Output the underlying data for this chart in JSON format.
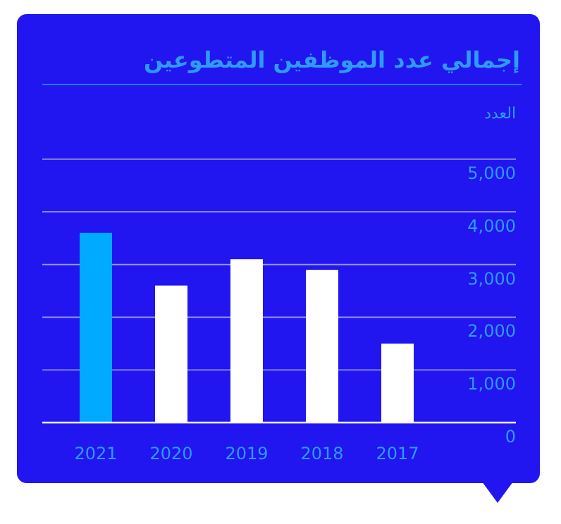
{
  "chart_data": {
    "type": "bar",
    "title": "إجمالي عدد الموظفين المتطوعين",
    "ylabel": "العدد",
    "categories": [
      "2021",
      "2020",
      "2019",
      "2018",
      "2017"
    ],
    "values": [
      3600,
      2600,
      3100,
      2900,
      1500
    ],
    "colors": [
      "#00aaff",
      "#ffffff",
      "#ffffff",
      "#ffffff",
      "#ffffff"
    ],
    "ylim": [
      0,
      5000
    ],
    "yticks": [
      {
        "value": 0,
        "label": "0"
      },
      {
        "value": 1000,
        "label": "1,000"
      },
      {
        "value": 2000,
        "label": "2,000"
      },
      {
        "value": 3000,
        "label": "3,000"
      },
      {
        "value": 4000,
        "label": "4,000"
      },
      {
        "value": 5000,
        "label": "5,000"
      }
    ],
    "grid": "y"
  }
}
